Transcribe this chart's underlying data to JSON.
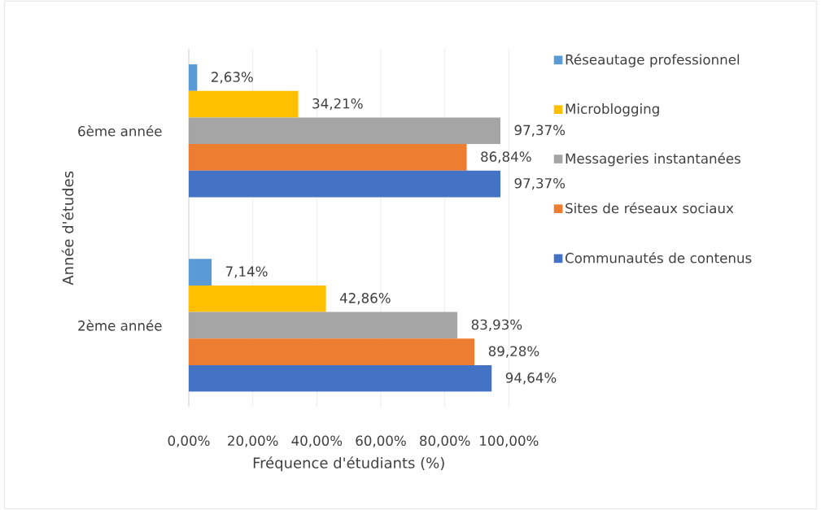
{
  "chart_data": {
    "type": "bar",
    "orientation": "horizontal",
    "xlabel": "Fréquence d'étudiants (%)",
    "ylabel": "Année d'études",
    "categories": [
      "6ème année",
      "2ème année"
    ],
    "series": [
      {
        "name": "Réseautage professionnel",
        "color": "#5b9bd5",
        "values": [
          2.63,
          7.14
        ],
        "value_labels": [
          "2,63%",
          "7,14%"
        ]
      },
      {
        "name": "Microblogging",
        "color": "#ffc000",
        "values": [
          34.21,
          42.86
        ],
        "value_labels": [
          "34,21%",
          "42,86%"
        ]
      },
      {
        "name": "Messageries instantanées",
        "color": "#a5a5a5",
        "values": [
          97.37,
          83.93
        ],
        "value_labels": [
          "97,37%",
          "83,93%"
        ]
      },
      {
        "name": "Sites de réseaux sociaux",
        "color": "#ed7d31",
        "values": [
          86.84,
          89.28
        ],
        "value_labels": [
          "86,84%",
          "89,28%"
        ]
      },
      {
        "name": "Communautés de contenus",
        "color": "#4472c4",
        "values": [
          97.37,
          94.64
        ],
        "value_labels": [
          "97,37%",
          "94,64%"
        ]
      }
    ],
    "xlim": [
      0,
      100
    ],
    "xticks": [
      {
        "value": 0,
        "label": "0,00%"
      },
      {
        "value": 20,
        "label": "20,00%"
      },
      {
        "value": 40,
        "label": "40,00%"
      },
      {
        "value": 60,
        "label": "60,00%"
      },
      {
        "value": 80,
        "label": "80,00%"
      },
      {
        "value": 100,
        "label": "100,00%"
      }
    ],
    "grid": "x",
    "legend": "right"
  }
}
